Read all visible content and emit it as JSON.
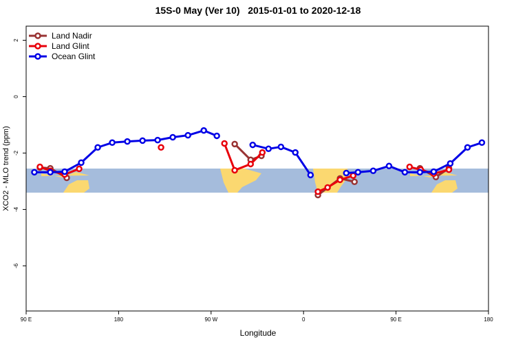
{
  "chart_data": {
    "type": "line",
    "title": "15S-0 May (Ver 10)   2015-01-01 to 2020-12-18",
    "x_label": "Longitude",
    "y_label": "XCO2 - MLO trend (ppm)",
    "xlim": [
      90,
      540
    ],
    "ylim": [
      -7.6,
      2.5
    ],
    "xticks": [
      {
        "value": 90,
        "label": "90 E"
      },
      {
        "value": 180,
        "label": "180"
      },
      {
        "value": 270,
        "label": "90 W"
      },
      {
        "value": 360,
        "label": "0"
      },
      {
        "value": 450,
        "label": "90 E"
      },
      {
        "value": 540,
        "label": "180"
      }
    ],
    "yticks": [
      2,
      0,
      -2,
      -4,
      -6
    ],
    "legend": "top-left",
    "series": [
      {
        "name": "Land Nadir",
        "color": "#993333",
        "x": [
          103.4,
          113.5,
          129.5,
          null,
          293,
          308.5,
          319,
          null,
          374,
          395.5,
          409.6,
          null,
          473.3,
          488.8,
          501.5
        ],
        "values": [
          -2.51,
          -2.54,
          -2.88,
          null,
          -1.68,
          -2.24,
          -2.1,
          null,
          -3.49,
          -2.9,
          -3.02,
          null,
          -2.54,
          -2.85,
          -2.54
        ]
      },
      {
        "name": "Land Glint",
        "color": "#e8000b",
        "x": [
          103.4,
          113.5,
          127.5,
          141.6,
          null,
          221.3,
          null,
          283,
          293,
          308.5,
          319.9,
          null,
          374,
          383.4,
          395.5,
          408.3,
          null,
          463.2,
          474,
          486.7,
          501.5
        ],
        "values": [
          -2.49,
          -2.63,
          -2.76,
          -2.56,
          null,
          -1.8,
          null,
          -1.66,
          -2.61,
          -2.39,
          -1.98,
          null,
          -3.37,
          -3.22,
          -2.95,
          -2.8,
          null,
          -2.49,
          -2.59,
          -2.73,
          -2.59
        ]
      },
      {
        "name": "Ocean Glint",
        "color": "#0000e6",
        "x": [
          98,
          113.5,
          127.5,
          143.6,
          159.7,
          173.8,
          188.5,
          203.3,
          218,
          232.7,
          247.5,
          262.9,
          275.6,
          null,
          310.5,
          325.9,
          338,
          352,
          366.8,
          null,
          401.6,
          413,
          427.8,
          443.2,
          458.6,
          473.3,
          486.7,
          502.8,
          519.6,
          533.6
        ],
        "values": [
          -2.68,
          -2.68,
          -2.66,
          -2.34,
          -1.8,
          -1.63,
          -1.59,
          -1.56,
          -1.54,
          -1.44,
          -1.37,
          -1.2,
          -1.39,
          null,
          -1.71,
          -1.85,
          -1.78,
          -1.98,
          -2.78,
          null,
          -2.71,
          -2.68,
          -2.63,
          -2.46,
          -2.68,
          -2.68,
          -2.66,
          -2.37,
          -1.8,
          -1.63
        ]
      }
    ]
  }
}
